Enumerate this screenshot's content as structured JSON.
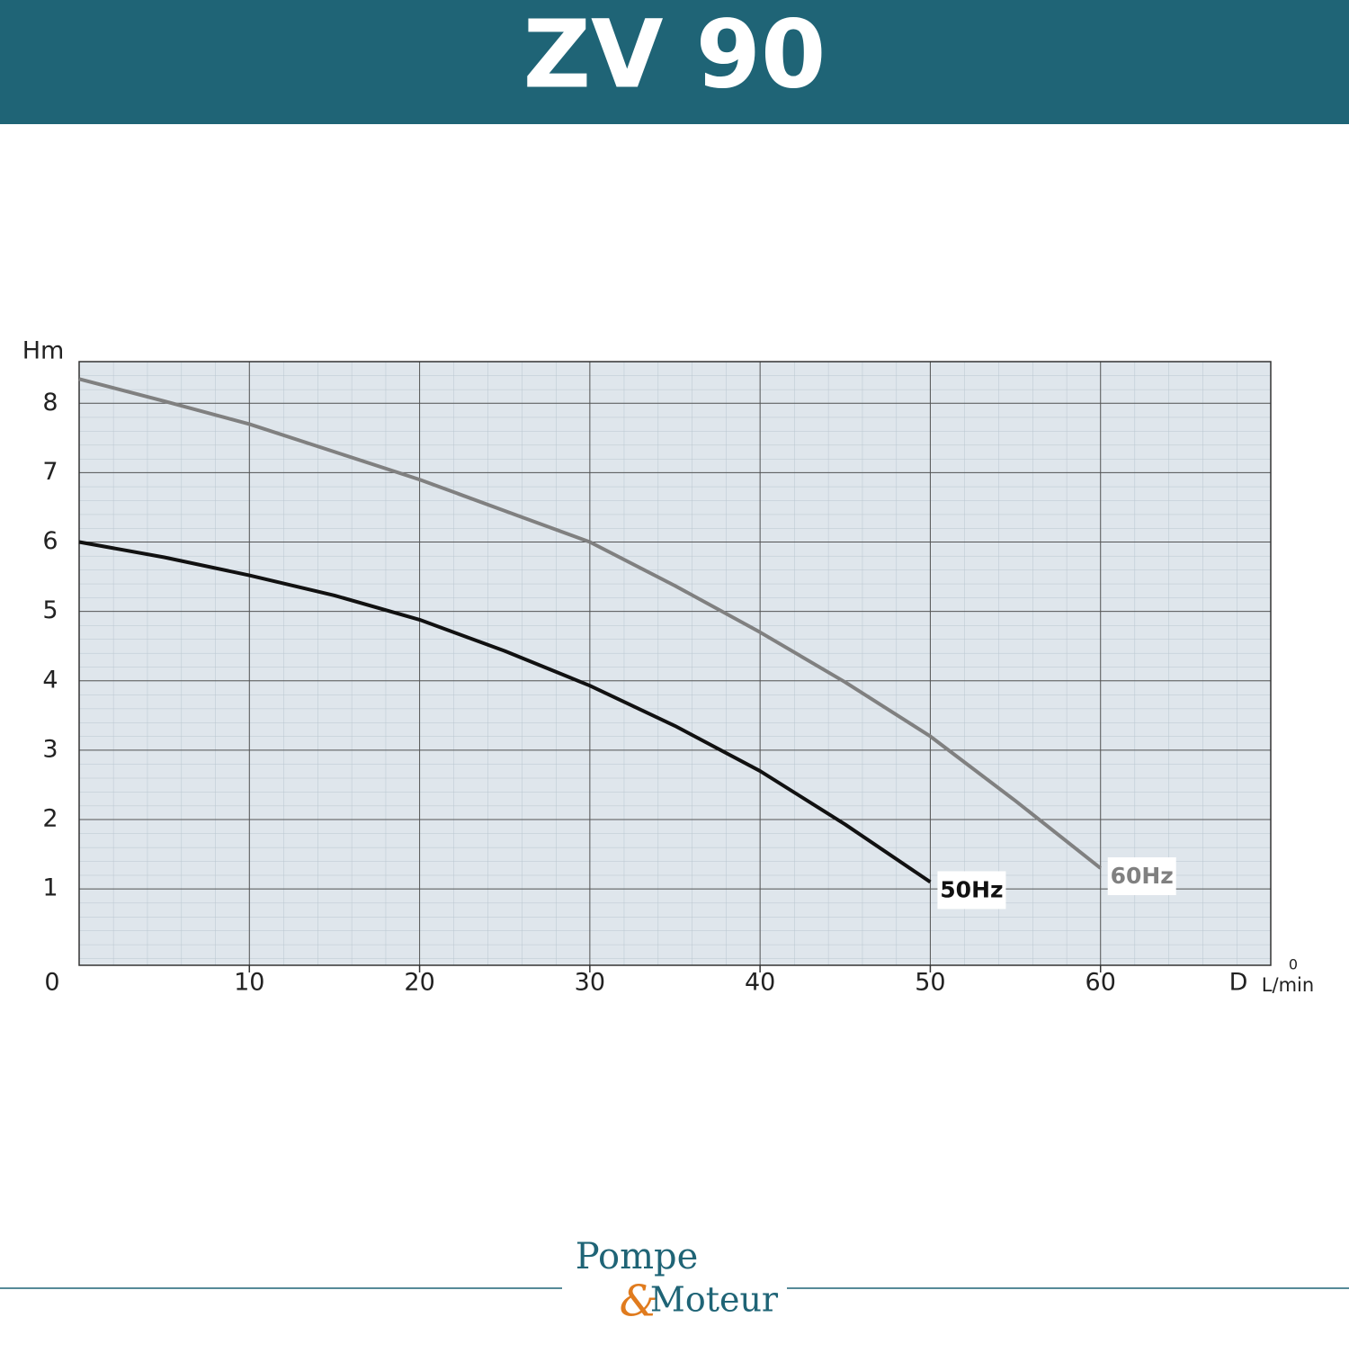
{
  "chart_data": {
    "type": "line",
    "title": "ZV 90",
    "x_label": "D",
    "x_unit": "L/min",
    "y_label": "Hm",
    "origin_label": "0",
    "right_label": "0",
    "x": [
      0,
      5,
      10,
      15,
      20,
      25,
      30,
      35,
      40,
      45,
      50,
      55,
      60
    ],
    "series": [
      {
        "name": "50Hz",
        "color": "#111111",
        "values": [
          6.0,
          5.78,
          5.52,
          5.23,
          4.88,
          4.43,
          3.93,
          3.35,
          2.7,
          1.93,
          1.1,
          null,
          null
        ]
      },
      {
        "name": "60Hz",
        "color": "#808080",
        "values": [
          8.35,
          8.03,
          7.7,
          7.3,
          6.9,
          6.45,
          6.0,
          5.37,
          4.7,
          3.98,
          3.2,
          2.27,
          1.3
        ]
      }
    ],
    "xlim": [
      0,
      70
    ],
    "xticks": [
      10,
      20,
      30,
      40,
      50,
      60
    ],
    "ylim": [
      -0.1,
      8.6
    ],
    "yticks": [
      1,
      2,
      3,
      4,
      5,
      6,
      7,
      8
    ],
    "grid": true
  },
  "logo": {
    "word1": "Pompe",
    "amp": "&",
    "word2": "Moteur"
  }
}
